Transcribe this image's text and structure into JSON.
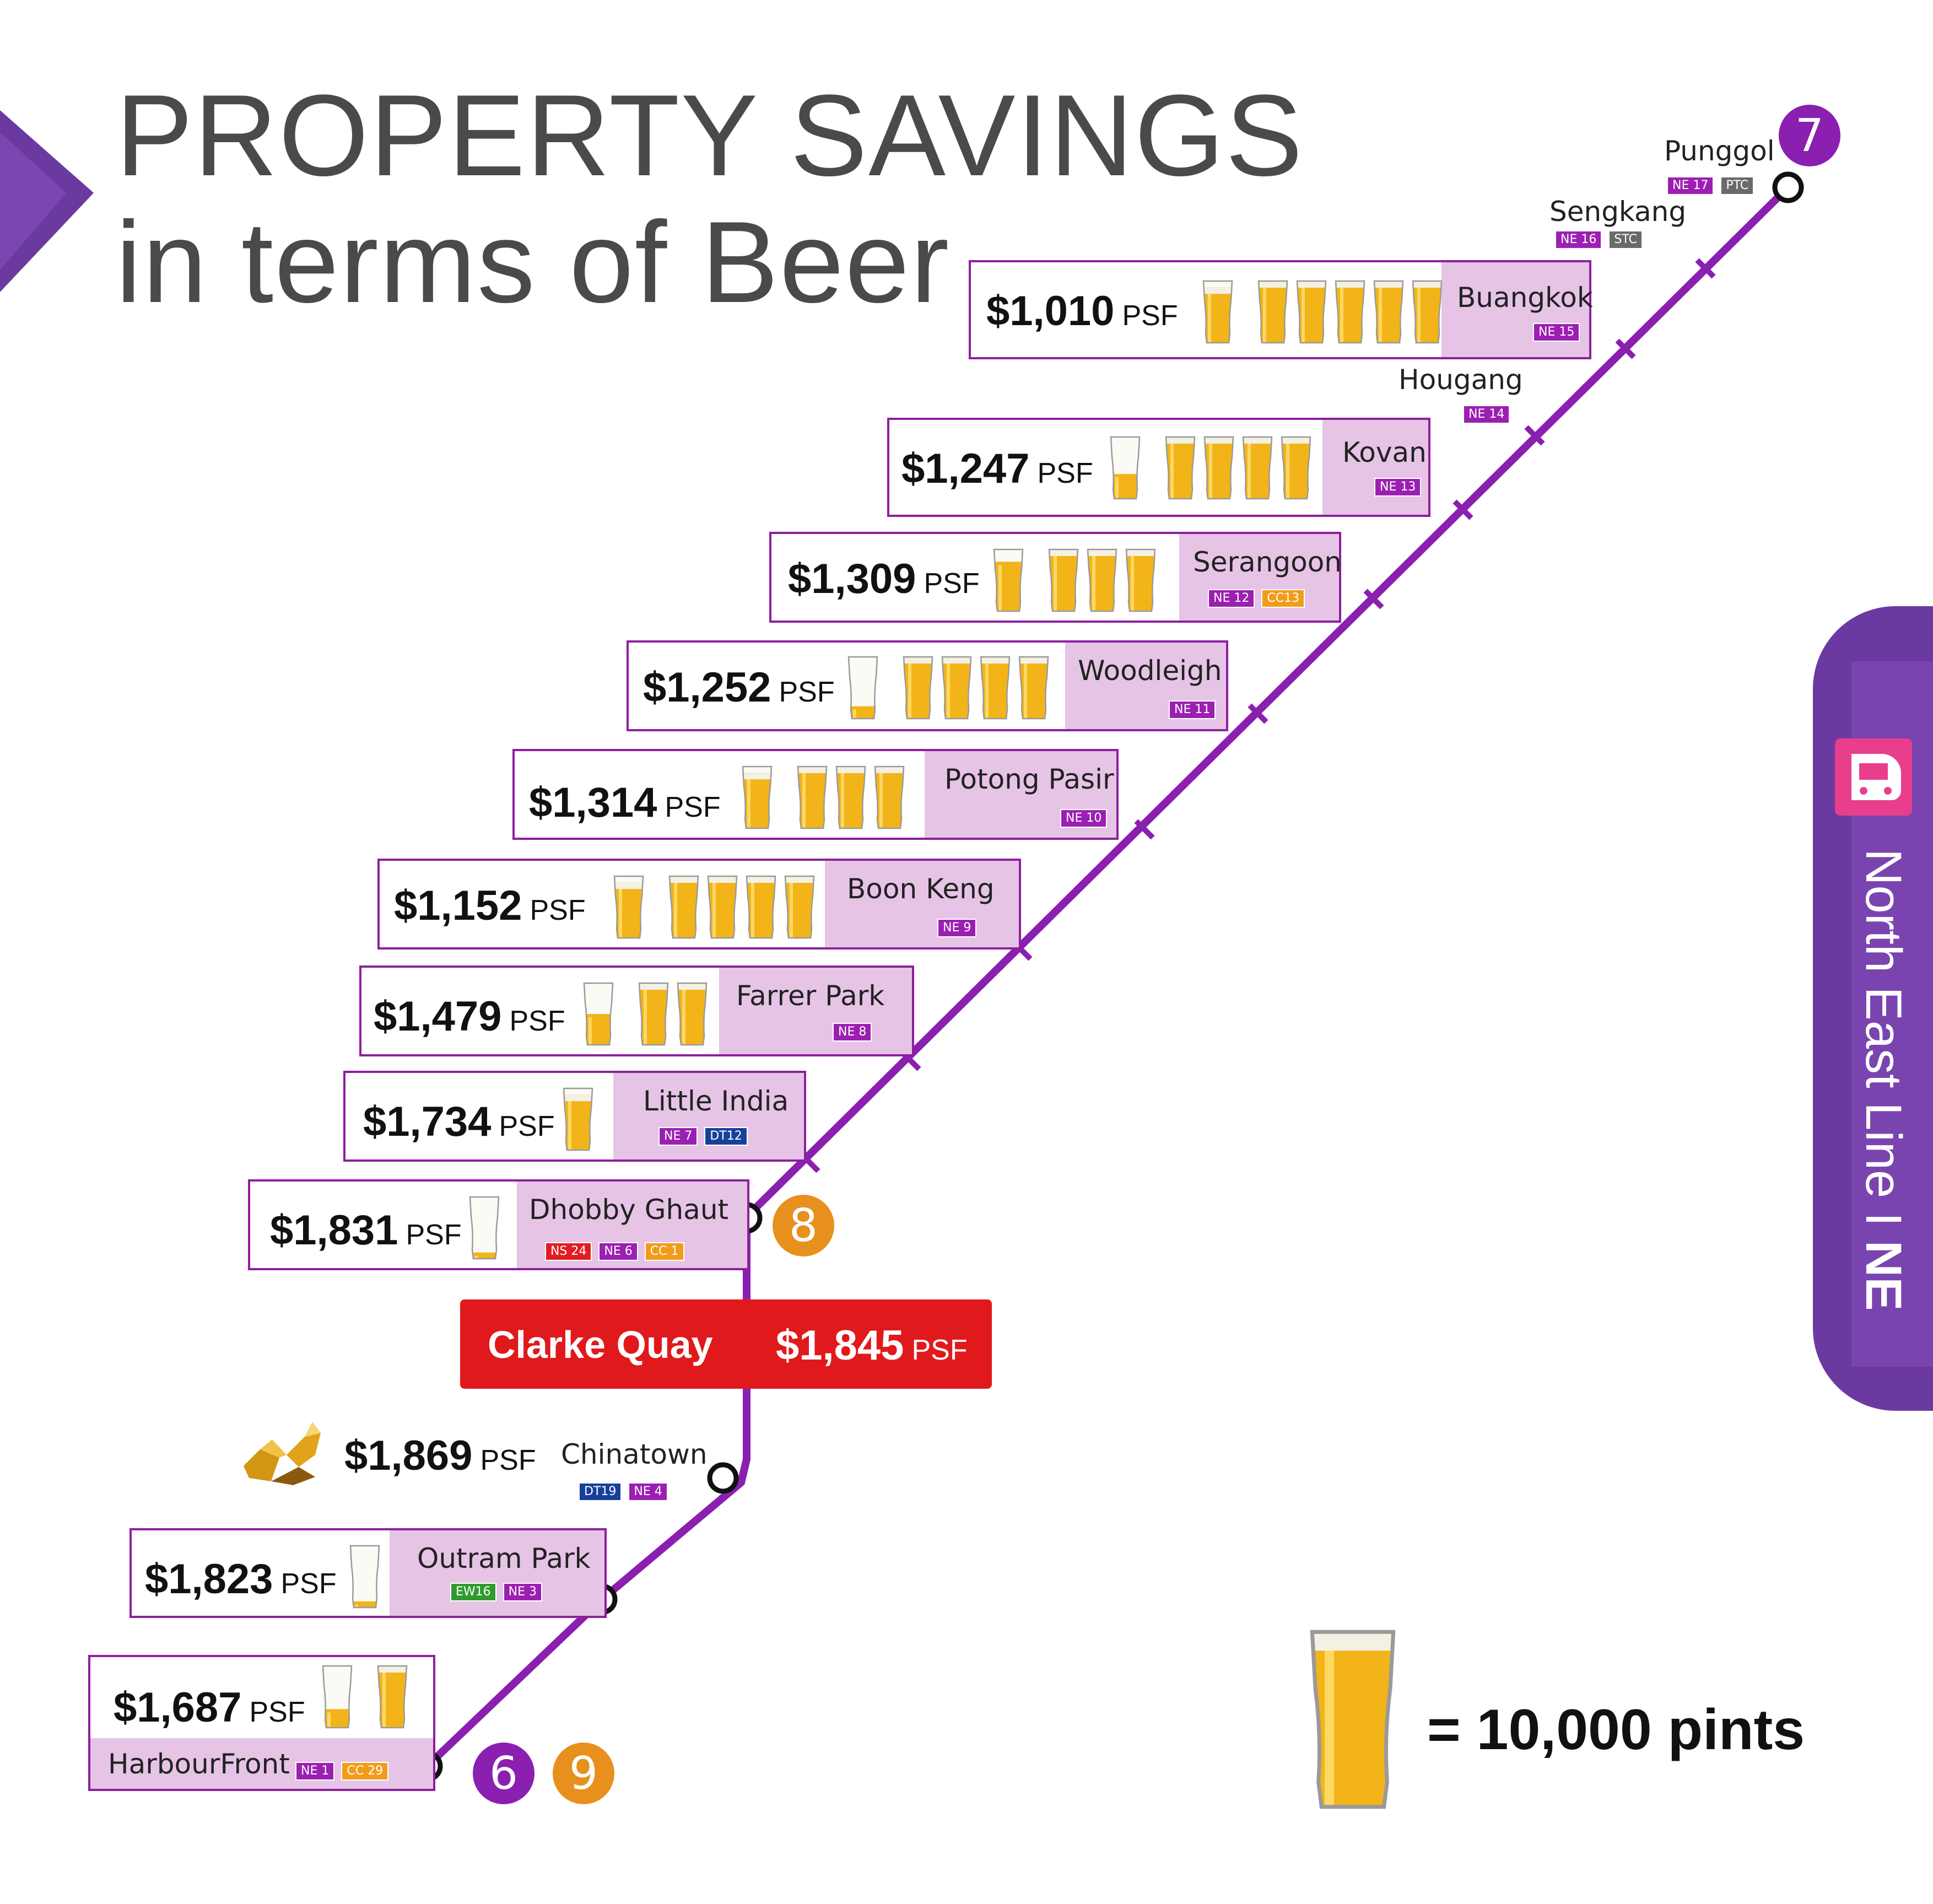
{
  "title": {
    "line1": "PROPERTY SAVINGS",
    "line2": "in terms of Beer"
  },
  "line": {
    "name": "North East Line",
    "separator": "I",
    "code": "NE",
    "color": "#8a1fb0"
  },
  "unit": "PSF",
  "stations": [
    {
      "name": "Punggol",
      "codes": [
        "NE 17",
        "PTC"
      ],
      "has_card": false
    },
    {
      "name": "Sengkang",
      "codes": [
        "NE 16",
        "STC"
      ],
      "has_card": false
    },
    {
      "name": "Buangkok",
      "codes": [
        "NE 15"
      ],
      "price": "$1,010",
      "beers": 5,
      "partial": 0.9
    },
    {
      "name": "Hougang",
      "codes": [
        "NE 14"
      ],
      "has_card": false
    },
    {
      "name": "Kovan",
      "codes": [
        "NE 13"
      ],
      "price": "$1,247",
      "beers": 4,
      "partial": 0.4
    },
    {
      "name": "Serangoon",
      "codes": [
        "NE 12",
        "CC13"
      ],
      "price": "$1,309",
      "beers": 3,
      "partial": 0.8
    },
    {
      "name": "Woodleigh",
      "codes": [
        "NE 11"
      ],
      "price": "$1,252",
      "beers": 4,
      "partial": 0.2
    },
    {
      "name": "Potong Pasir",
      "codes": [
        "NE 10"
      ],
      "price": "$1,314",
      "beers": 3,
      "partial": 0.9
    },
    {
      "name": "Boon Keng",
      "codes": [
        "NE 9"
      ],
      "price": "$1,152",
      "beers": 4,
      "partial": 0.9
    },
    {
      "name": "Farrer Park",
      "codes": [
        "NE 8"
      ],
      "price": "$1,479",
      "beers": 2,
      "partial": 0.5
    },
    {
      "name": "Little India",
      "codes": [
        "NE 7",
        "DT12"
      ],
      "price": "$1,734",
      "beers": 0,
      "partial": 0.9
    },
    {
      "name": "Dhobby Ghaut",
      "codes": [
        "NS 24",
        "NE 6",
        "CC 1"
      ],
      "price": "$1,831",
      "beers": 0,
      "partial": 0.1
    },
    {
      "name": "Clarke Quay",
      "price": "$1,845"
    },
    {
      "name": "Chinatown",
      "codes": [
        "DT19",
        "NE 4"
      ],
      "price": "$1,869",
      "beers": 0,
      "partial": 0
    },
    {
      "name": "Outram Park",
      "codes": [
        "EW16",
        "NE 3"
      ],
      "price": "$1,823",
      "beers": 0,
      "partial": 0.1
    },
    {
      "name": "HarbourFront",
      "codes": [
        "NE 1",
        "CC 29"
      ],
      "price": "$1,687",
      "beers": 1,
      "partial": 0.3
    }
  ],
  "interchange_lines": [
    "7",
    "8",
    "6",
    "9"
  ],
  "legend": {
    "text": "= 10,000 pints",
    "unit_pints": 10000
  },
  "colors": {
    "purple": "#8a1fb0",
    "lavender": "#e6c4e6",
    "orange": "#e7901e",
    "red": "#e0191c",
    "beer": "#f2b418"
  }
}
